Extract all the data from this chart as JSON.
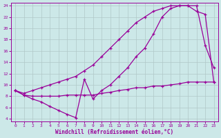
{
  "xlabel": "Windchill (Refroidissement éolien,°C)",
  "bg_color": "#cce8e8",
  "grid_color": "#b0c8c8",
  "line_color": "#990099",
  "xlim": [
    -0.5,
    23.5
  ],
  "ylim": [
    3.5,
    24.5
  ],
  "xticks": [
    0,
    1,
    2,
    3,
    4,
    5,
    6,
    7,
    8,
    9,
    10,
    11,
    12,
    13,
    14,
    15,
    16,
    17,
    18,
    19,
    20,
    21,
    22,
    23
  ],
  "yticks": [
    4,
    6,
    8,
    10,
    12,
    14,
    16,
    18,
    20,
    22,
    24
  ],
  "line1_x": [
    0,
    1,
    2,
    3,
    4,
    5,
    6,
    7,
    8,
    9,
    10,
    11,
    12,
    13,
    14,
    15,
    16,
    17,
    18,
    19,
    20,
    21,
    22,
    23
  ],
  "line1_y": [
    9.0,
    8.2,
    7.5,
    7.0,
    6.2,
    5.5,
    4.8,
    4.2,
    11.0,
    7.5,
    9.0,
    10.0,
    11.5,
    13.0,
    15.0,
    16.5,
    19.0,
    22.0,
    23.5,
    24.0,
    24.0,
    24.0,
    17.0,
    13.0
  ],
  "line2_x": [
    0,
    1,
    2,
    3,
    4,
    5,
    6,
    7,
    8,
    9,
    10,
    11,
    12,
    13,
    14,
    15,
    16,
    17,
    18,
    19,
    20,
    21,
    22,
    23
  ],
  "line2_y": [
    9.0,
    8.5,
    9.0,
    9.5,
    10.0,
    10.5,
    11.0,
    11.5,
    12.5,
    13.5,
    15.0,
    16.5,
    18.0,
    19.5,
    21.0,
    22.0,
    23.0,
    23.5,
    24.0,
    24.0,
    24.0,
    23.0,
    22.5,
    10.5
  ],
  "line3_x": [
    0,
    1,
    2,
    3,
    4,
    5,
    6,
    7,
    8,
    9,
    10,
    11,
    12,
    13,
    14,
    15,
    16,
    17,
    18,
    19,
    20,
    21,
    22,
    23
  ],
  "line3_y": [
    9.0,
    8.2,
    8.0,
    8.0,
    8.0,
    8.0,
    8.2,
    8.2,
    8.2,
    8.2,
    8.5,
    8.7,
    9.0,
    9.2,
    9.5,
    9.5,
    9.8,
    9.8,
    10.0,
    10.2,
    10.5,
    10.5,
    10.5,
    10.5
  ]
}
